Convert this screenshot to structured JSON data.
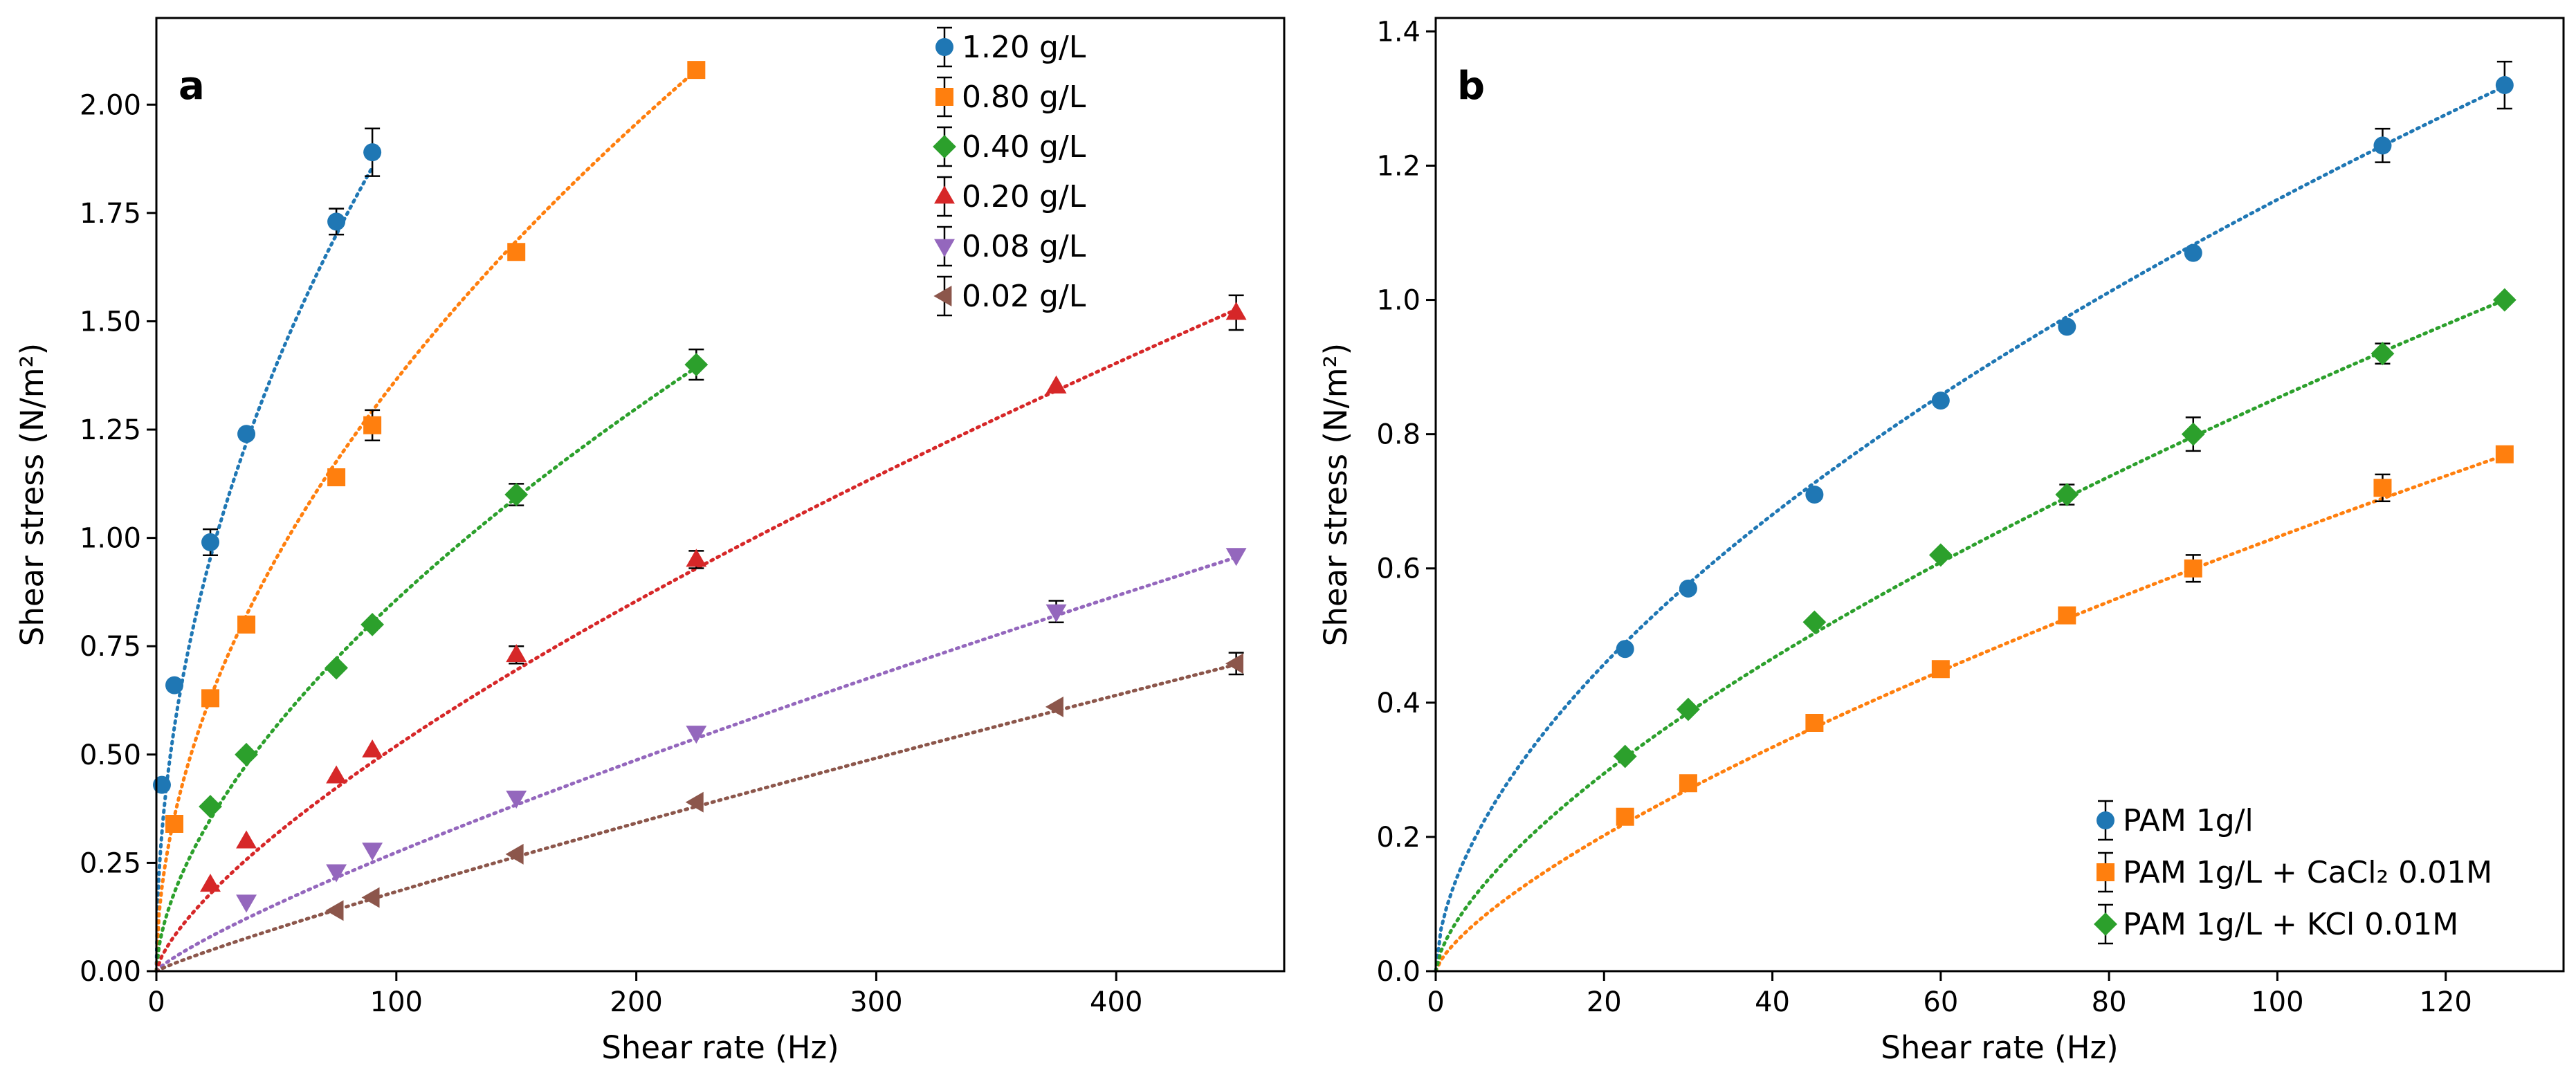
{
  "chart_data": [
    {
      "type": "scatter",
      "panel_label": "a",
      "xlabel": "Shear rate (Hz)",
      "ylabel": "Shear stress (N/m²)",
      "xlim": [
        0,
        470
      ],
      "ylim": [
        0,
        2.2
      ],
      "x_ticks": [
        0,
        100,
        200,
        300,
        400
      ],
      "x_tick_labels": [
        "0",
        "100",
        "200",
        "300",
        "400"
      ],
      "y_ticks": [
        0,
        0.25,
        0.5,
        0.75,
        1.0,
        1.25,
        1.5,
        1.75,
        2.0
      ],
      "y_tick_labels": [
        "0.00",
        "0.25",
        "0.50",
        "0.75",
        "1.00",
        "1.25",
        "1.50",
        "1.75",
        "2.00"
      ],
      "legend_position": "top-right",
      "series": [
        {
          "name": "1.20 g/L",
          "legend_label": "1.20 g/L",
          "color": "#1f77b4",
          "marker": "circle",
          "x": [
            2.3,
            7.5,
            22.5,
            37.5,
            75,
            90
          ],
          "y": [
            0.43,
            0.66,
            0.99,
            1.24,
            1.73,
            1.89
          ],
          "err": [
            0.0,
            0.0,
            0.03,
            0.0,
            0.03,
            0.055
          ],
          "fit": {
            "k": 0.214,
            "n": 0.48
          }
        },
        {
          "name": "0.80 g/L",
          "legend_label": "0.80 g/L",
          "color": "#ff7f0e",
          "marker": "square",
          "x": [
            7.5,
            22.5,
            37.5,
            75,
            90,
            150,
            225
          ],
          "y": [
            0.34,
            0.63,
            0.8,
            1.14,
            1.26,
            1.66,
            2.08
          ],
          "err": [
            0.0,
            0.0,
            0.0,
            0.0,
            0.035,
            0.0,
            0.0
          ],
          "fit": {
            "k": 0.1254,
            "n": 0.5185
          }
        },
        {
          "name": "0.40 g/L",
          "legend_label": "0.40 g/L",
          "color": "#2ca02c",
          "marker": "diamond",
          "x": [
            22.5,
            37.5,
            75,
            90,
            150,
            225
          ],
          "y": [
            0.38,
            0.5,
            0.7,
            0.8,
            1.1,
            1.4
          ],
          "err": [
            0.0,
            0.0,
            0.0,
            0.0,
            0.025,
            0.035
          ],
          "fit": {
            "k": 0.0542,
            "n": 0.5995
          }
        },
        {
          "name": "0.20 g/L",
          "legend_label": "0.20 g/L",
          "color": "#d62728",
          "marker": "triangle-up",
          "x": [
            22.5,
            37.5,
            75,
            90,
            150,
            225,
            375,
            450
          ],
          "y": [
            0.2,
            0.3,
            0.45,
            0.51,
            0.73,
            0.95,
            1.35,
            1.52
          ],
          "err": [
            0.0,
            0.0,
            0.0,
            0.0,
            0.02,
            0.02,
            0.0,
            0.04
          ],
          "fit": {
            "k": 0.0192,
            "n": 0.7163
          }
        },
        {
          "name": "0.08 g/L",
          "legend_label": "0.08 g/L",
          "color": "#9467bd",
          "marker": "triangle-down",
          "x": [
            37.5,
            75,
            90,
            150,
            225,
            375,
            450
          ],
          "y": [
            0.16,
            0.23,
            0.28,
            0.4,
            0.55,
            0.83,
            0.96
          ],
          "err": [
            0.0,
            0.0,
            0.0,
            0.0,
            0.0,
            0.025,
            0.0
          ],
          "fit": {
            "k": 0.006,
            "n": 0.8299
          }
        },
        {
          "name": "0.02 g/L",
          "legend_label": "0.02 g/L",
          "color": "#8c564b",
          "marker": "triangle-left",
          "x": [
            75,
            90,
            150,
            225,
            375,
            450
          ],
          "y": [
            0.14,
            0.17,
            0.27,
            0.39,
            0.61,
            0.71
          ],
          "err": [
            0.0,
            0.0,
            0.0,
            0.0,
            0.0,
            0.025
          ],
          "fit": {
            "k": 0.00294,
            "n": 0.8976
          }
        }
      ]
    },
    {
      "type": "scatter",
      "panel_label": "b",
      "xlabel": "Shear rate (Hz)",
      "ylabel": "Shear stress (N/m²)",
      "xlim": [
        0,
        134
      ],
      "ylim": [
        0,
        1.42
      ],
      "x_ticks": [
        0,
        20,
        40,
        60,
        80,
        100,
        120
      ],
      "x_tick_labels": [
        "0",
        "20",
        "40",
        "60",
        "80",
        "100",
        "120"
      ],
      "y_ticks": [
        0,
        0.2,
        0.4,
        0.6,
        0.8,
        1.0,
        1.2,
        1.4
      ],
      "y_tick_labels": [
        "0.0",
        "0.2",
        "0.4",
        "0.6",
        "0.8",
        "1.0",
        "1.2",
        "1.4"
      ],
      "legend_position": "bottom-right",
      "series": [
        {
          "name": "PAM 1g/l",
          "legend_label": "PAM 1g/l",
          "color": "#1f77b4",
          "marker": "circle",
          "x": [
            22.5,
            30,
            45,
            60,
            75,
            90,
            112.5,
            127
          ],
          "y": [
            0.48,
            0.57,
            0.71,
            0.85,
            0.96,
            1.07,
            1.23,
            1.32
          ],
          "err": [
            0.0,
            0.0,
            0.0,
            0.0,
            0.0,
            0.0,
            0.025,
            0.035
          ],
          "fit": {
            "k": 0.0822,
            "n": 0.5728
          }
        },
        {
          "name": "PAM 1g/L + CaCl2 0.01M",
          "legend_label": "PAM 1g/L + CaCl₂ 0.01M",
          "color": "#ff7f0e",
          "marker": "square",
          "x": [
            22.5,
            30,
            45,
            60,
            75,
            90,
            112.5,
            127
          ],
          "y": [
            0.23,
            0.28,
            0.37,
            0.45,
            0.53,
            0.6,
            0.72,
            0.77
          ],
          "err": [
            0.0,
            0.0,
            0.0,
            0.0,
            0.0,
            0.02,
            0.02,
            0.0
          ],
          "fit": {
            "k": 0.0232,
            "n": 0.7226
          }
        },
        {
          "name": "PAM 1g/L + KCl 0.01M",
          "legend_label": "PAM 1g/L + KCl 0.01M",
          "color": "#2ca02c",
          "marker": "diamond",
          "x": [
            22.5,
            30,
            45,
            60,
            75,
            90,
            112.5,
            127
          ],
          "y": [
            0.32,
            0.39,
            0.52,
            0.62,
            0.71,
            0.8,
            0.92,
            1.0
          ],
          "err": [
            0.0,
            0.0,
            0.0,
            0.0,
            0.015,
            0.025,
            0.015,
            0.0
          ],
          "fit": {
            "k": 0.0406,
            "n": 0.6614
          }
        }
      ]
    }
  ]
}
